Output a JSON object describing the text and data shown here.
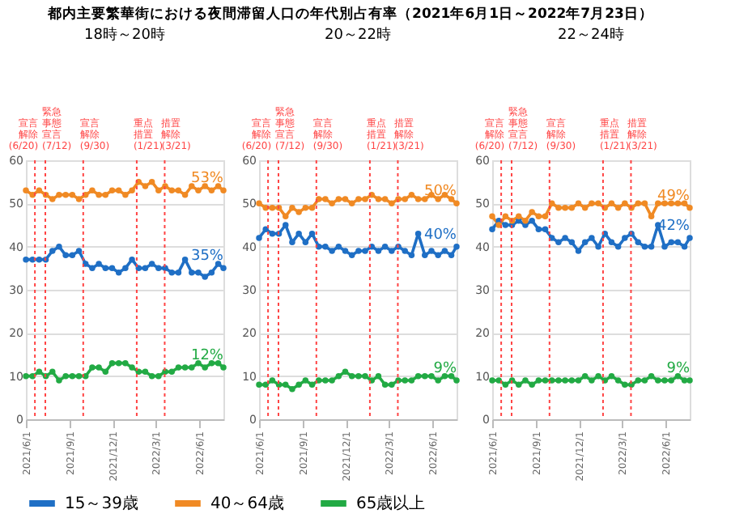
{
  "chart_data": [
    {
      "type": "line",
      "title": "都内主要繁華街における夜間滞留人口の年代別占有率（2021年6月1日～2022年7月23日）",
      "subtitle": "18時～20時",
      "x": [
        "2021-06-01",
        "2021-06-15",
        "2021-06-29",
        "2021-07-13",
        "2021-07-27",
        "2021-08-10",
        "2021-08-24",
        "2021-09-07",
        "2021-09-21",
        "2021-10-05",
        "2021-10-19",
        "2021-11-02",
        "2021-11-16",
        "2021-11-30",
        "2021-12-14",
        "2021-12-28",
        "2022-01-11",
        "2022-01-25",
        "2022-02-08",
        "2022-02-22",
        "2022-03-08",
        "2022-03-22",
        "2022-04-05",
        "2022-04-19",
        "2022-05-03",
        "2022-05-17",
        "2022-05-31",
        "2022-06-14",
        "2022-06-28",
        "2022-07-12",
        "2022-07-23"
      ],
      "series": [
        {
          "name": "15～39歳",
          "color": "#1f6fc5",
          "values": [
            37,
            37,
            37,
            37,
            39,
            40,
            38,
            38,
            39,
            36,
            35,
            36,
            35,
            35,
            34,
            35,
            37,
            35,
            35,
            36,
            35,
            35,
            34,
            34,
            37,
            34,
            34,
            33,
            34,
            36,
            35
          ]
        },
        {
          "name": "40～64歳",
          "color": "#f08a24",
          "values": [
            53,
            52,
            53,
            52,
            51,
            52,
            52,
            52,
            51,
            52,
            53,
            52,
            52,
            53,
            53,
            52,
            53,
            55,
            54,
            55,
            53,
            54,
            53,
            53,
            52,
            54,
            53,
            54,
            53,
            54,
            53
          ]
        },
        {
          "name": "65歳以上",
          "color": "#22aa44",
          "values": [
            10,
            10,
            11,
            10,
            11,
            9,
            10,
            10,
            10,
            10,
            12,
            12,
            11,
            13,
            13,
            13,
            12,
            11,
            11,
            10,
            10,
            11,
            11,
            12,
            12,
            12,
            13,
            12,
            13,
            13,
            12
          ]
        }
      ],
      "xlim": [
        "2021-06-01",
        "2022-07-23"
      ],
      "xticks": [
        {
          "value": "2021-06-01",
          "label": "2021/6/1"
        },
        {
          "value": "2021-09-01",
          "label": "2021/9/1"
        },
        {
          "value": "2021-12-01",
          "label": "2021/12/1"
        },
        {
          "value": "2022-03-01",
          "label": "2022/3/1"
        },
        {
          "value": "2022-06-01",
          "label": "2022/6/1"
        }
      ],
      "ylim": [
        0,
        60
      ],
      "yticks": [
        0,
        10,
        20,
        30,
        40,
        50,
        60
      ],
      "grid": "y",
      "legend": "bottom",
      "marker": "circle",
      "line_style": "solid",
      "ref_lines": [
        {
          "axis": "x",
          "value": "2021-06-20",
          "label": "宣言解除(6/20)",
          "color": "#ff4444",
          "line_style": "dotted"
        },
        {
          "axis": "x",
          "value": "2021-07-12",
          "label": "緊急事態宣言(7/12)",
          "color": "#ff4444",
          "line_style": "dotted"
        },
        {
          "axis": "x",
          "value": "2021-09-30",
          "label": "宣言解除(9/30)",
          "color": "#ff4444",
          "line_style": "dotted"
        },
        {
          "axis": "x",
          "value": "2022-01-21",
          "label": "重点措置(1/21)",
          "color": "#ff4444",
          "line_style": "dotted"
        },
        {
          "axis": "x",
          "value": "2022-03-21",
          "label": "措置解除(3/21)",
          "color": "#ff4444",
          "line_style": "dotted"
        }
      ],
      "annotations": [
        {
          "text": "35%",
          "x": "2022-07-23",
          "y": 35
        },
        {
          "text": "53%",
          "x": "2022-07-23",
          "y": 53
        },
        {
          "text": "12%",
          "x": "2022-07-23",
          "y": 12
        }
      ]
    },
    {
      "type": "line",
      "subtitle": "20～22時",
      "x": [
        "2021-06-01",
        "2021-06-15",
        "2021-06-29",
        "2021-07-13",
        "2021-07-27",
        "2021-08-10",
        "2021-08-24",
        "2021-09-07",
        "2021-09-21",
        "2021-10-05",
        "2021-10-19",
        "2021-11-02",
        "2021-11-16",
        "2021-11-30",
        "2021-12-14",
        "2021-12-28",
        "2022-01-11",
        "2022-01-25",
        "2022-02-08",
        "2022-02-22",
        "2022-03-08",
        "2022-03-22",
        "2022-04-05",
        "2022-04-19",
        "2022-05-03",
        "2022-05-17",
        "2022-05-31",
        "2022-06-14",
        "2022-06-28",
        "2022-07-12",
        "2022-07-23"
      ],
      "series": [
        {
          "color": "#1f6fc5",
          "values": [
            42,
            44,
            43,
            43,
            45,
            41,
            43,
            41,
            43,
            40,
            40,
            39,
            40,
            39,
            38,
            39,
            39,
            40,
            39,
            40,
            39,
            40,
            39,
            38,
            43,
            38,
            39,
            38,
            39,
            38,
            40
          ]
        },
        {
          "color": "#f08a24",
          "values": [
            50,
            49,
            49,
            49,
            47,
            49,
            48,
            49,
            49,
            51,
            51,
            50,
            51,
            51,
            50,
            51,
            51,
            52,
            51,
            51,
            50,
            51,
            51,
            52,
            51,
            51,
            52,
            51,
            52,
            51,
            50
          ]
        },
        {
          "color": "#22aa44",
          "values": [
            8,
            8,
            9,
            8,
            8,
            7,
            8,
            9,
            8,
            9,
            9,
            9,
            10,
            11,
            10,
            10,
            10,
            9,
            10,
            8,
            8,
            9,
            9,
            9,
            10,
            10,
            10,
            9,
            10,
            10,
            9
          ]
        }
      ],
      "xlim": [
        "2021-06-01",
        "2022-07-23"
      ],
      "xticks": [
        {
          "value": "2021-06-01",
          "label": "2021/6/1"
        },
        {
          "value": "2021-09-01",
          "label": "2021/9/1"
        },
        {
          "value": "2021-12-01",
          "label": "2021/12/1"
        },
        {
          "value": "2022-03-01",
          "label": "2022/3/1"
        },
        {
          "value": "2022-06-01",
          "label": "2022/6/1"
        }
      ],
      "ylim": [
        0,
        60
      ],
      "yticks": [
        0,
        10,
        20,
        30,
        40,
        50,
        60
      ],
      "grid": "y",
      "marker": "circle",
      "line_style": "solid",
      "ref_lines": [
        {
          "axis": "x",
          "value": "2021-06-20",
          "label": "宣言解除(6/20)",
          "color": "#ff4444",
          "line_style": "dotted"
        },
        {
          "axis": "x",
          "value": "2021-07-12",
          "label": "緊急事態宣言(7/12)",
          "color": "#ff4444",
          "line_style": "dotted"
        },
        {
          "axis": "x",
          "value": "2021-09-30",
          "label": "宣言解除(9/30)",
          "color": "#ff4444",
          "line_style": "dotted"
        },
        {
          "axis": "x",
          "value": "2022-01-21",
          "label": "重点措置(1/21)",
          "color": "#ff4444",
          "line_style": "dotted"
        },
        {
          "axis": "x",
          "value": "2022-03-21",
          "label": "措置解除(3/21)",
          "color": "#ff4444",
          "line_style": "dotted"
        }
      ],
      "annotations": [
        {
          "text": "40%",
          "x": "2022-07-23",
          "y": 40
        },
        {
          "text": "50%",
          "x": "2022-07-23",
          "y": 50
        },
        {
          "text": "9%",
          "x": "2022-07-23",
          "y": 9
        }
      ]
    },
    {
      "type": "line",
      "subtitle": "22～24時",
      "x": [
        "2021-06-01",
        "2021-06-15",
        "2021-06-29",
        "2021-07-13",
        "2021-07-27",
        "2021-08-10",
        "2021-08-24",
        "2021-09-07",
        "2021-09-21",
        "2021-10-05",
        "2021-10-19",
        "2021-11-02",
        "2021-11-16",
        "2021-11-30",
        "2021-12-14",
        "2021-12-28",
        "2022-01-11",
        "2022-01-25",
        "2022-02-08",
        "2022-02-22",
        "2022-03-08",
        "2022-03-22",
        "2022-04-05",
        "2022-04-19",
        "2022-05-03",
        "2022-05-17",
        "2022-05-31",
        "2022-06-14",
        "2022-06-28",
        "2022-07-12",
        "2022-07-23"
      ],
      "series": [
        {
          "color": "#1f6fc5",
          "values": [
            44,
            46,
            45,
            45,
            46,
            45,
            46,
            44,
            44,
            42,
            41,
            42,
            41,
            39,
            41,
            42,
            40,
            43,
            41,
            40,
            42,
            43,
            41,
            40,
            40,
            45,
            40,
            41,
            41,
            40,
            42
          ]
        },
        {
          "color": "#f08a24",
          "values": [
            47,
            45,
            47,
            46,
            47,
            46,
            48,
            47,
            47,
            50,
            49,
            49,
            49,
            50,
            49,
            50,
            50,
            49,
            50,
            49,
            50,
            49,
            50,
            50,
            47,
            50,
            50,
            50,
            50,
            50,
            49
          ]
        },
        {
          "color": "#22aa44",
          "values": [
            9,
            9,
            8,
            9,
            8,
            9,
            8,
            9,
            9,
            9,
            9,
            9,
            9,
            9,
            10,
            9,
            10,
            9,
            10,
            9,
            8,
            8,
            9,
            9,
            10,
            9,
            9,
            9,
            10,
            9,
            9
          ]
        }
      ],
      "xlim": [
        "2021-06-01",
        "2022-07-23"
      ],
      "xticks": [
        {
          "value": "2021-06-01",
          "label": "2021/6/1"
        },
        {
          "value": "2021-09-01",
          "label": "2021/9/1"
        },
        {
          "value": "2021-12-01",
          "label": "2021/12/1"
        },
        {
          "value": "2022-03-01",
          "label": "2022/3/1"
        },
        {
          "value": "2022-06-01",
          "label": "2022/6/1"
        }
      ],
      "ylim": [
        0,
        60
      ],
      "yticks": [
        0,
        10,
        20,
        30,
        40,
        50,
        60
      ],
      "grid": "y",
      "marker": "circle",
      "line_style": "solid",
      "ref_lines": [
        {
          "axis": "x",
          "value": "2021-06-20",
          "label": "宣言解除(6/20)",
          "color": "#ff4444",
          "line_style": "dotted"
        },
        {
          "axis": "x",
          "value": "2021-07-12",
          "label": "緊急事態宣言(7/12)",
          "color": "#ff4444",
          "line_style": "dotted"
        },
        {
          "axis": "x",
          "value": "2021-09-30",
          "label": "宣言解除(9/30)",
          "color": "#ff4444",
          "line_style": "dotted"
        },
        {
          "axis": "x",
          "value": "2022-01-21",
          "label": "重点措置(1/21)",
          "color": "#ff4444",
          "line_style": "dotted"
        },
        {
          "axis": "x",
          "value": "2022-03-21",
          "label": "措置解除(3/21)",
          "color": "#ff4444",
          "line_style": "dotted"
        }
      ],
      "annotations": [
        {
          "text": "42%",
          "x": "2022-07-23",
          "y": 42
        },
        {
          "text": "49%",
          "x": "2022-07-23",
          "y": 49
        },
        {
          "text": "9%",
          "x": "2022-07-23",
          "y": 9
        }
      ]
    }
  ]
}
